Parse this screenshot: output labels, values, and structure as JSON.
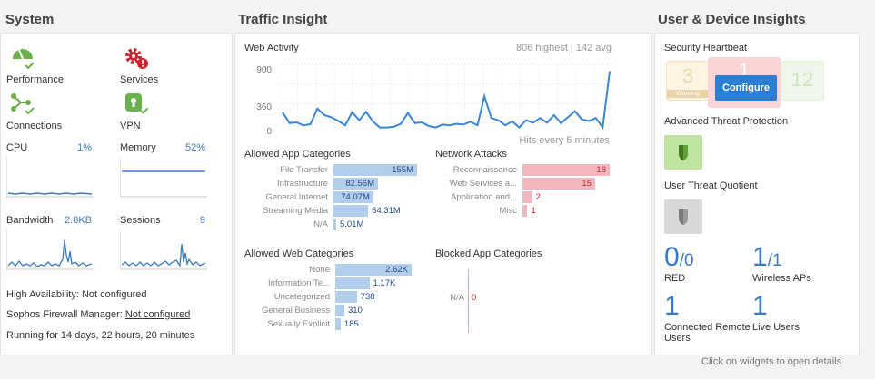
{
  "system": {
    "title": "System",
    "icons": [
      {
        "label": "Performance",
        "icon": "performance-icon"
      },
      {
        "label": "Services",
        "icon": "services-gear-icon"
      },
      {
        "label": "Connections",
        "icon": "connections-icon"
      },
      {
        "label": "VPN",
        "icon": "vpn-lock-icon"
      }
    ],
    "cpu": {
      "label": "CPU",
      "value": "1%"
    },
    "memory": {
      "label": "Memory",
      "value": "52%"
    },
    "bandwidth": {
      "label": "Bandwidth",
      "value": "2.8KB"
    },
    "sessions": {
      "label": "Sessions",
      "value": "9"
    },
    "ha_status": "High Availability: Not configured",
    "sfm_label": "Sophos Firewall Manager:",
    "sfm_link": "Not configured",
    "uptime": "Running for 14 days, 22 hours, 20 minutes"
  },
  "traffic": {
    "title": "Traffic Insight",
    "web_activity": {
      "title": "Web Activity",
      "stats": "806 highest | 142 avg",
      "footer": "Hits every 5 minutes",
      "ticks": [
        "900",
        "360",
        "0"
      ],
      "chart_data": {
        "type": "line",
        "ylim": [
          0,
          900
        ],
        "values": [
          240,
          90,
          100,
          60,
          75,
          290,
          200,
          170,
          120,
          60,
          240,
          130,
          245,
          110,
          30,
          30,
          40,
          80,
          230,
          90,
          100,
          50,
          30,
          70,
          60,
          80,
          70,
          110,
          60,
          460,
          160,
          130,
          60,
          115,
          30,
          130,
          95,
          160,
          95,
          200,
          90,
          170,
          255,
          140,
          120,
          160,
          30,
          806
        ]
      }
    },
    "allowed_app_categories": {
      "title": "Allowed App Categories",
      "items": [
        {
          "label": "File Transfer",
          "value": "155M",
          "n": 155
        },
        {
          "label": "Infrastructure",
          "value": "82.56M",
          "n": 82.56
        },
        {
          "label": "General Internet",
          "value": "74.07M",
          "n": 74.07
        },
        {
          "label": "Streaming Media",
          "value": "64.31M",
          "n": 64.31
        },
        {
          "label": "N/A",
          "value": "5.01M",
          "n": 5.01
        }
      ]
    },
    "network_attacks": {
      "title": "Network Attacks",
      "items": [
        {
          "label": "Reconnaissance",
          "value": "18",
          "n": 18
        },
        {
          "label": "Web Services a...",
          "value": "15",
          "n": 15
        },
        {
          "label": "Application and...",
          "value": "2",
          "n": 2
        },
        {
          "label": "Misc",
          "value": "1",
          "n": 1
        }
      ]
    },
    "allowed_web_categories": {
      "title": "Allowed Web Categories",
      "items": [
        {
          "label": "None",
          "value": "2.62K",
          "n": 2620
        },
        {
          "label": "Information Te...",
          "value": "1.17K",
          "n": 1170
        },
        {
          "label": "Uncategorized",
          "value": "738",
          "n": 738
        },
        {
          "label": "General Business",
          "value": "310",
          "n": 310
        },
        {
          "label": "Sexually Explicit",
          "value": "185",
          "n": 185
        }
      ]
    },
    "blocked_app_categories": {
      "title": "Blocked App Categories",
      "items": [
        {
          "label": "N/A",
          "value": "0",
          "n": 0
        }
      ]
    }
  },
  "users": {
    "title": "User & Device Insights",
    "heartbeat": {
      "title": "Security Heartbeat",
      "tiles": [
        "3",
        "1",
        "12"
      ],
      "tile_sub": "Warning",
      "configure": "Configure"
    },
    "atp": {
      "title": "Advanced Threat Protection",
      "icon": "shield-icon"
    },
    "utq": {
      "title": "User Threat Quotient",
      "icon": "shield-icon"
    },
    "red": {
      "count": "0",
      "total": "0",
      "label": "RED"
    },
    "wireless": {
      "count": "1",
      "total": "1",
      "label": "Wireless APs"
    },
    "remote": {
      "count": "1",
      "label": "Connected Remote Users"
    },
    "live": {
      "count": "1",
      "label": "Live Users"
    }
  },
  "footer_hint": "Click on widgets to open details",
  "colors": {
    "accent": "#3a7ac6",
    "green": "#6ab04c",
    "red": "#c8242d",
    "bar_blue": "#b3cdec",
    "bar_red": "#f1b7bd"
  }
}
